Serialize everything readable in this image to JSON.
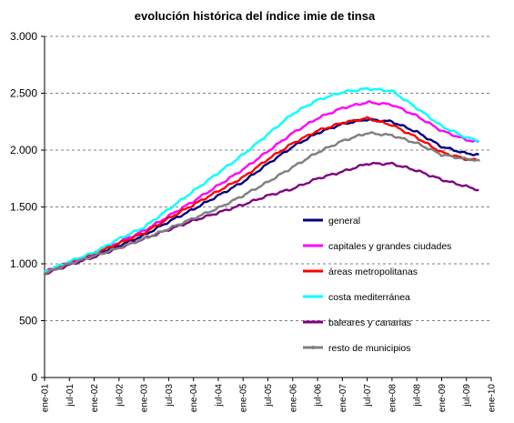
{
  "chart_data": {
    "type": "line",
    "title": "evolución histórica del índice imie de tinsa",
    "xlabel": "",
    "ylabel": "",
    "ylim": [
      0,
      3000
    ],
    "yticks": [
      {
        "value": 0,
        "label": "0"
      },
      {
        "value": 500,
        "label": "500"
      },
      {
        "value": 1000,
        "label": "1.000"
      },
      {
        "value": 1500,
        "label": "1.500"
      },
      {
        "value": 2000,
        "label": "2.000"
      },
      {
        "value": 2500,
        "label": "2.500"
      },
      {
        "value": 3000,
        "label": "3.000"
      }
    ],
    "xlim": [
      "ene-01",
      "ene-10"
    ],
    "xticks": [
      "ene-01",
      "jul-01",
      "ene-02",
      "jul-02",
      "ene-03",
      "jul-03",
      "ene-04",
      "jul-04",
      "ene-05",
      "jul-05",
      "ene-06",
      "jul-06",
      "ene-07",
      "jul-07",
      "ene-08",
      "jul-08",
      "ene-09",
      "jul-09",
      "ene-10"
    ],
    "grid": "horizontal dashed",
    "legend_position": "lower-right inside",
    "series": [
      {
        "name": "general",
        "color": "#000080",
        "marker": "none",
        "points": [
          [
            "ene-01",
            920
          ],
          [
            "jul-01",
            1010
          ],
          [
            "ene-02",
            1080
          ],
          [
            "jul-02",
            1160
          ],
          [
            "ene-03",
            1250
          ],
          [
            "jul-03",
            1370
          ],
          [
            "ene-04",
            1480
          ],
          [
            "jul-04",
            1600
          ],
          [
            "ene-05",
            1720
          ],
          [
            "jul-05",
            1880
          ],
          [
            "ene-06",
            2030
          ],
          [
            "jul-06",
            2150
          ],
          [
            "ene-07",
            2230
          ],
          [
            "jul-07",
            2270
          ],
          [
            "ene-08",
            2250
          ],
          [
            "jul-08",
            2160
          ],
          [
            "ene-09",
            2030
          ],
          [
            "jul-09",
            1970
          ],
          [
            "oct-09",
            1960
          ]
        ]
      },
      {
        "name": "capitales y grandes ciudades",
        "color": "#FF00FF",
        "marker": "none",
        "points": [
          [
            "ene-01",
            930
          ],
          [
            "jul-01",
            1010
          ],
          [
            "ene-02",
            1090
          ],
          [
            "jul-02",
            1190
          ],
          [
            "ene-03",
            1290
          ],
          [
            "jul-03",
            1420
          ],
          [
            "ene-04",
            1550
          ],
          [
            "jul-04",
            1690
          ],
          [
            "ene-05",
            1830
          ],
          [
            "jul-05",
            1990
          ],
          [
            "ene-06",
            2150
          ],
          [
            "jul-06",
            2280
          ],
          [
            "ene-07",
            2370
          ],
          [
            "jul-07",
            2420
          ],
          [
            "ene-08",
            2400
          ],
          [
            "jul-08",
            2300
          ],
          [
            "ene-09",
            2170
          ],
          [
            "jul-09",
            2090
          ],
          [
            "oct-09",
            2070
          ]
        ]
      },
      {
        "name": "áreas metropolitanas",
        "color": "#FF0000",
        "marker": "none",
        "points": [
          [
            "ene-01",
            925
          ],
          [
            "jul-01",
            1015
          ],
          [
            "ene-02",
            1090
          ],
          [
            "jul-02",
            1180
          ],
          [
            "ene-03",
            1270
          ],
          [
            "jul-03",
            1400
          ],
          [
            "ene-04",
            1520
          ],
          [
            "jul-04",
            1640
          ],
          [
            "ene-05",
            1760
          ],
          [
            "jul-05",
            1920
          ],
          [
            "ene-06",
            2060
          ],
          [
            "jul-06",
            2170
          ],
          [
            "ene-07",
            2240
          ],
          [
            "jul-07",
            2280
          ],
          [
            "ene-08",
            2220
          ],
          [
            "jul-08",
            2110
          ],
          [
            "ene-09",
            1980
          ],
          [
            "jul-09",
            1920
          ],
          [
            "oct-09",
            1910
          ]
        ]
      },
      {
        "name": "costa mediterránea",
        "color": "#00FFFF",
        "marker": "none",
        "points": [
          [
            "ene-01",
            930
          ],
          [
            "jul-01",
            1020
          ],
          [
            "ene-02",
            1100
          ],
          [
            "jul-02",
            1220
          ],
          [
            "ene-03",
            1320
          ],
          [
            "jul-03",
            1480
          ],
          [
            "ene-04",
            1640
          ],
          [
            "jul-04",
            1800
          ],
          [
            "ene-05",
            1960
          ],
          [
            "jul-05",
            2140
          ],
          [
            "ene-06",
            2320
          ],
          [
            "jul-06",
            2440
          ],
          [
            "ene-07",
            2510
          ],
          [
            "jul-07",
            2540
          ],
          [
            "ene-08",
            2520
          ],
          [
            "jul-08",
            2370
          ],
          [
            "ene-09",
            2210
          ],
          [
            "jul-09",
            2110
          ],
          [
            "oct-09",
            2080
          ]
        ]
      },
      {
        "name": "baleares y canarias",
        "color": "#800080",
        "marker": "none",
        "points": [
          [
            "ene-01",
            910
          ],
          [
            "jul-01",
            990
          ],
          [
            "ene-02",
            1060
          ],
          [
            "jul-02",
            1140
          ],
          [
            "ene-03",
            1220
          ],
          [
            "jul-03",
            1300
          ],
          [
            "ene-04",
            1380
          ],
          [
            "jul-04",
            1450
          ],
          [
            "ene-05",
            1520
          ],
          [
            "jul-05",
            1600
          ],
          [
            "ene-06",
            1660
          ],
          [
            "jul-06",
            1750
          ],
          [
            "ene-07",
            1810
          ],
          [
            "jul-07",
            1880
          ],
          [
            "ene-08",
            1880
          ],
          [
            "jul-08",
            1820
          ],
          [
            "ene-09",
            1740
          ],
          [
            "jul-09",
            1680
          ],
          [
            "oct-09",
            1650
          ]
        ]
      },
      {
        "name": "resto de municipios",
        "color": "#808080",
        "marker": "dot",
        "points": [
          [
            "ene-01",
            915
          ],
          [
            "jul-01",
            1000
          ],
          [
            "ene-02",
            1070
          ],
          [
            "jul-02",
            1140
          ],
          [
            "ene-03",
            1220
          ],
          [
            "jul-03",
            1310
          ],
          [
            "ene-04",
            1400
          ],
          [
            "jul-04",
            1490
          ],
          [
            "ene-05",
            1600
          ],
          [
            "jul-05",
            1720
          ],
          [
            "ene-06",
            1850
          ],
          [
            "jul-06",
            1980
          ],
          [
            "ene-07",
            2080
          ],
          [
            "jul-07",
            2150
          ],
          [
            "ene-08",
            2130
          ],
          [
            "jul-08",
            2060
          ],
          [
            "ene-09",
            1960
          ],
          [
            "jul-09",
            1920
          ],
          [
            "oct-09",
            1910
          ]
        ]
      }
    ]
  }
}
